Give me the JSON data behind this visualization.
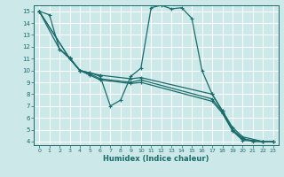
{
  "xlabel": "Humidex (Indice chaleur)",
  "background_color": "#cce8e8",
  "grid_color": "#ffffff",
  "line_color": "#1a6b6b",
  "xlim": [
    -0.5,
    23.5
  ],
  "ylim": [
    3.7,
    15.5
  ],
  "yticks": [
    4,
    5,
    6,
    7,
    8,
    9,
    10,
    11,
    12,
    13,
    14,
    15
  ],
  "xticks": [
    0,
    1,
    2,
    3,
    4,
    5,
    6,
    7,
    8,
    9,
    10,
    11,
    12,
    13,
    14,
    15,
    16,
    17,
    18,
    19,
    20,
    21,
    22,
    23
  ],
  "series": [
    {
      "x": [
        0,
        1,
        2,
        3,
        4,
        5,
        6,
        7,
        8,
        9,
        10,
        11,
        12,
        13,
        14,
        15,
        16,
        17,
        18,
        19,
        20,
        21,
        22
      ],
      "y": [
        15.0,
        14.7,
        11.8,
        11.0,
        10.0,
        9.8,
        9.5,
        7.0,
        7.5,
        9.5,
        10.2,
        15.3,
        15.5,
        15.2,
        15.3,
        14.4,
        10.0,
        8.0,
        6.6,
        5.0,
        4.3,
        4.0,
        4.0
      ]
    },
    {
      "x": [
        0,
        2,
        3,
        4,
        5,
        6,
        9,
        10,
        17,
        18,
        19,
        20,
        22,
        23
      ],
      "y": [
        15.0,
        11.8,
        11.1,
        10.0,
        9.8,
        9.6,
        9.3,
        9.4,
        8.0,
        6.6,
        5.2,
        4.4,
        4.0,
        4.0
      ]
    },
    {
      "x": [
        0,
        3,
        4,
        5,
        6,
        9,
        10,
        17,
        18,
        19,
        20,
        22,
        23
      ],
      "y": [
        15.0,
        11.0,
        10.0,
        9.7,
        9.3,
        9.0,
        9.2,
        7.6,
        6.5,
        5.0,
        4.2,
        4.0,
        4.0
      ]
    },
    {
      "x": [
        0,
        3,
        4,
        5,
        6,
        9,
        10,
        17,
        18,
        19,
        20,
        22,
        23
      ],
      "y": [
        15.0,
        11.0,
        10.0,
        9.6,
        9.2,
        8.9,
        9.0,
        7.4,
        6.4,
        4.9,
        4.1,
        4.0,
        4.0
      ]
    }
  ]
}
